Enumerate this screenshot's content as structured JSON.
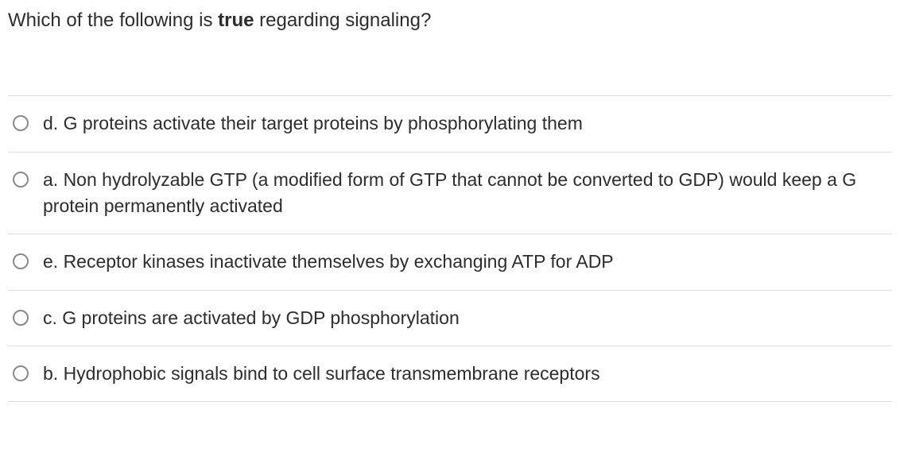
{
  "question": {
    "pre": "Which of the following is ",
    "bold": "true",
    "post": " regarding signaling?"
  },
  "options": [
    {
      "id": "d",
      "text": "d. G proteins activate their target proteins by phosphorylating them"
    },
    {
      "id": "a",
      "text": "a. Non hydrolyzable GTP (a modified form of GTP that cannot be converted to GDP) would keep a G protein permanently activated"
    },
    {
      "id": "e",
      "text": "e. Receptor kinases inactivate themselves by exchanging ATP for ADP"
    },
    {
      "id": "c",
      "text": "c. G proteins are activated by GDP phosphorylation"
    },
    {
      "id": "b",
      "text": "b. Hydrophobic signals bind to cell surface transmembrane receptors"
    }
  ],
  "style": {
    "text_color": "#2d2d2d",
    "divider_color": "#dcdcdc",
    "radio_border": "#8a8a8a",
    "question_fontsize": 24,
    "option_fontsize": 23
  }
}
